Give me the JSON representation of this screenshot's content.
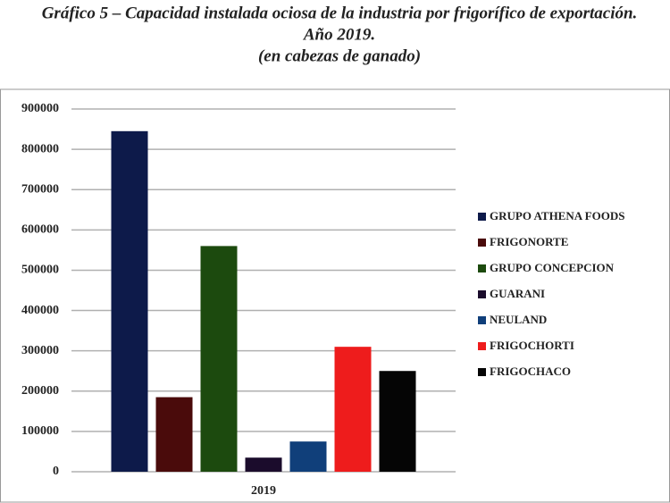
{
  "chart_data": {
    "type": "bar",
    "title_lines": [
      "Gráfico 5 – Capacidad instalada ociosa de la industria por frigorífico de exportación.",
      "Año 2019.",
      "(en cabezas de ganado)"
    ],
    "categories": [
      "2019"
    ],
    "series": [
      {
        "name": "GRUPO ATHENA FOODS",
        "color": "#0d1a4a",
        "values": [
          845000
        ]
      },
      {
        "name": "FRIGONORTE",
        "color": "#4a0b0b",
        "values": [
          185000
        ]
      },
      {
        "name": "GRUPO CONCEPCION",
        "color": "#1c4a0e",
        "values": [
          560000
        ]
      },
      {
        "name": "GUARANI",
        "color": "#1b0c2c",
        "values": [
          35000
        ]
      },
      {
        "name": "NEULAND",
        "color": "#103f7a",
        "values": [
          75000
        ]
      },
      {
        "name": "FRIGOCHORTI",
        "color": "#ee1c1c",
        "values": [
          310000
        ]
      },
      {
        "name": "FRIGOCHACO",
        "color": "#050505",
        "values": [
          250000
        ]
      }
    ],
    "ylim": [
      0,
      900000
    ],
    "yticks": [
      0,
      100000,
      200000,
      300000,
      400000,
      500000,
      600000,
      700000,
      800000,
      900000
    ],
    "grid": true,
    "legend": "right"
  }
}
